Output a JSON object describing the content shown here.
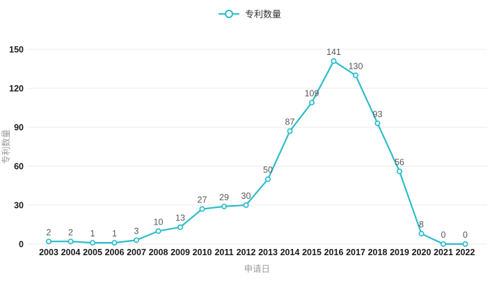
{
  "legend": {
    "label": "专利数量"
  },
  "chart_data": {
    "type": "line",
    "title": "",
    "x": [
      "2003",
      "2004",
      "2005",
      "2006",
      "2007",
      "2008",
      "2009",
      "2010",
      "2011",
      "2012",
      "2013",
      "2014",
      "2015",
      "2016",
      "2017",
      "2018",
      "2019",
      "2020",
      "2021",
      "2022"
    ],
    "series": [
      {
        "name": "专利数量",
        "values": [
          2,
          2,
          1,
          1,
          3,
          10,
          13,
          27,
          29,
          30,
          50,
          87,
          109,
          141,
          130,
          93,
          56,
          8,
          0,
          0
        ]
      }
    ],
    "xlabel": "申请日",
    "ylabel": "专利数量",
    "ylim": [
      0,
      150
    ],
    "yticks": [
      0,
      30,
      60,
      90,
      120,
      150
    ],
    "grid": true,
    "legend_position": "top-center",
    "marker": "hollow-circle",
    "colors": {
      "line": "#2cbcca",
      "marker_fill": "#ffffff",
      "grid": "#e9e9e9",
      "data_label": "#595959",
      "tick_label": "#1a1a1a",
      "axis_title": "#9b9b9b",
      "legend_text": "#333333",
      "background": "#ffffff"
    }
  }
}
